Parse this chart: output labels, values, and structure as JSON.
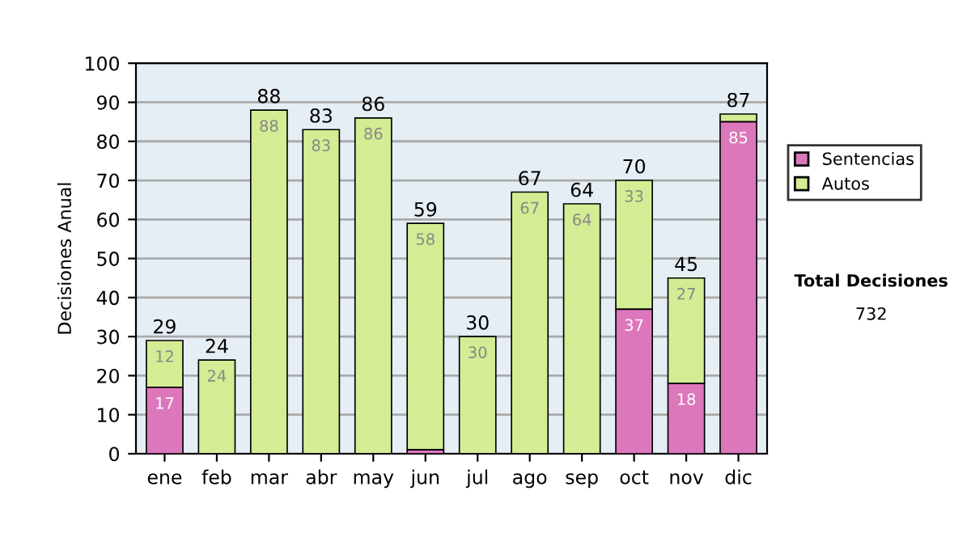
{
  "chart_data": {
    "type": "bar",
    "stacked": true,
    "ylabel": "Decisiones Anual",
    "categories": [
      "ene",
      "feb",
      "mar",
      "abr",
      "may",
      "jun",
      "jul",
      "ago",
      "sep",
      "oct",
      "nov",
      "dic"
    ],
    "series": [
      {
        "name": "Sentencias",
        "color": "#dd77bb",
        "values": [
          17,
          0,
          0,
          0,
          0,
          1,
          0,
          0,
          0,
          37,
          18,
          85
        ],
        "value_labels": [
          "17",
          null,
          null,
          null,
          null,
          null,
          null,
          null,
          null,
          "37",
          "18",
          "85"
        ]
      },
      {
        "name": "Autos",
        "color": "#d4ec94",
        "values": [
          12,
          24,
          88,
          83,
          86,
          58,
          30,
          67,
          64,
          33,
          27,
          2
        ],
        "value_labels": [
          "12",
          "24",
          "88",
          "83",
          "86",
          "58",
          "30",
          "67",
          "64",
          "33",
          "27",
          null
        ]
      }
    ],
    "totals": [
      "29",
      "24",
      "88",
      "83",
      "86",
      "59",
      "30",
      "67",
      "64",
      "70",
      "45",
      "87"
    ],
    "ylim": [
      0,
      100
    ],
    "yticks": [
      0,
      10,
      20,
      30,
      40,
      50,
      60,
      70,
      80,
      90,
      100
    ],
    "grid": "y",
    "legend": "right",
    "annotations": [
      "Total Decisiones",
      "732"
    ]
  }
}
